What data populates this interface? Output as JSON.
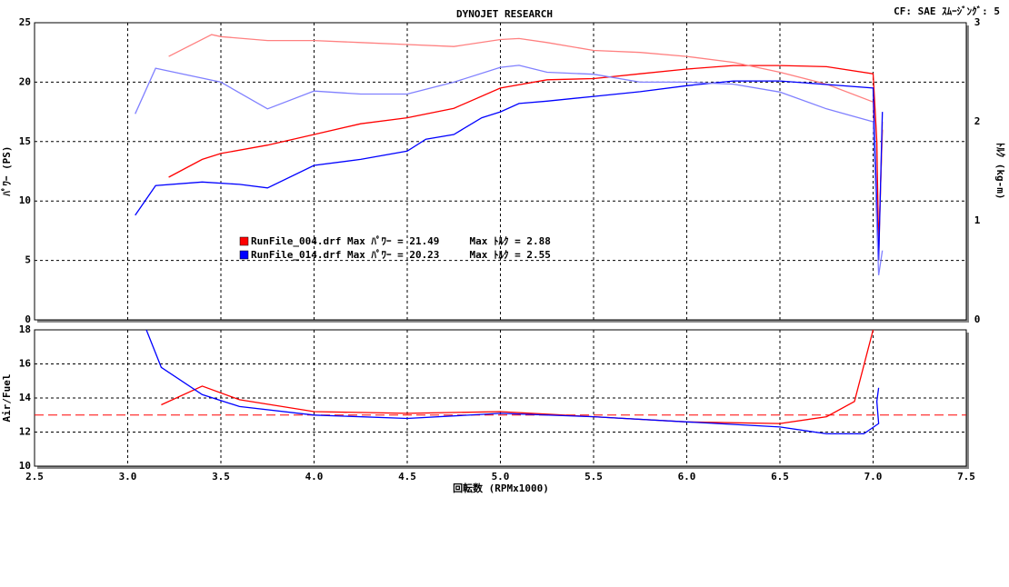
{
  "chart_data": [
    {
      "type": "line",
      "title": "DYNOJET  RESEARCH",
      "annotation": "CF: SAE  ｽﾑｰｼﾞﾝｸﾞ: 5",
      "ylabel": "ﾊﾟﾜｰ (PS)",
      "y2label": "ﾄﾙｸ (kg-m)",
      "xlim": [
        2.5,
        7.5
      ],
      "ylim": [
        0,
        25
      ],
      "yticks": [
        0,
        5,
        10,
        15,
        20,
        25
      ],
      "y2lim": [
        0,
        3
      ],
      "y2ticks": [
        0,
        1,
        2,
        3
      ],
      "grid": true,
      "legend": [
        {
          "label": "RunFile_004.drf Max ﾊﾟﾜｰ = 21.49     Max ﾄﾙｸ = 2.88",
          "color": "#ff0000"
        },
        {
          "label": "RunFile_014.drf Max ﾊﾟﾜｰ = 20.23     Max ﾄﾙｸ = 2.55",
          "color": "#0000ff"
        }
      ],
      "series": [
        {
          "color": "#ff0000",
          "x": [
            3.22,
            3.4,
            3.5,
            3.75,
            4.0,
            4.25,
            4.5,
            4.75,
            5.0,
            5.25,
            5.5,
            5.75,
            6.0,
            6.25,
            6.5,
            6.75,
            7.0,
            7.02,
            7.03,
            7.05
          ],
          "values": [
            12,
            13.5,
            14,
            14.7,
            15.6,
            16.5,
            17,
            17.8,
            19.5,
            20.2,
            20.3,
            20.7,
            21.1,
            21.4,
            21.4,
            21.3,
            20.7,
            15,
            6,
            16
          ]
        },
        {
          "color": "#ff8080",
          "axis": "y2",
          "x": [
            3.22,
            3.45,
            3.5,
            3.75,
            4.0,
            4.25,
            4.5,
            4.75,
            5.0,
            5.1,
            5.25,
            5.5,
            5.75,
            6.0,
            6.25,
            6.5,
            6.75,
            7.0,
            7.03,
            7.05
          ],
          "values": [
            2.66,
            2.88,
            2.86,
            2.82,
            2.82,
            2.8,
            2.78,
            2.76,
            2.83,
            2.84,
            2.8,
            2.72,
            2.7,
            2.66,
            2.6,
            2.5,
            2.38,
            2.2,
            0.6,
            2.0
          ]
        },
        {
          "color": "#0000ff",
          "x": [
            3.04,
            3.15,
            3.4,
            3.6,
            3.75,
            4.0,
            4.25,
            4.5,
            4.6,
            4.75,
            4.9,
            5.0,
            5.1,
            5.25,
            5.5,
            5.75,
            6.0,
            6.25,
            6.5,
            6.75,
            7.0,
            7.03,
            7.05
          ],
          "values": [
            8.8,
            11.3,
            11.6,
            11.4,
            11.1,
            13,
            13.5,
            14.2,
            15.2,
            15.6,
            17,
            17.5,
            18.2,
            18.4,
            18.8,
            19.2,
            19.7,
            20.1,
            20.1,
            19.8,
            19.5,
            5,
            17.5
          ]
        },
        {
          "color": "#8080ff",
          "axis": "y2",
          "x": [
            3.04,
            3.15,
            3.25,
            3.5,
            3.75,
            4.0,
            4.25,
            4.5,
            4.75,
            5.0,
            5.1,
            5.25,
            5.5,
            5.75,
            6.0,
            6.25,
            6.5,
            6.75,
            7.0,
            7.03,
            7.05
          ],
          "values": [
            2.08,
            2.54,
            2.5,
            2.4,
            2.13,
            2.31,
            2.28,
            2.28,
            2.4,
            2.55,
            2.57,
            2.5,
            2.48,
            2.4,
            2.4,
            2.38,
            2.3,
            2.13,
            2.0,
            0.45,
            0.7
          ]
        }
      ]
    },
    {
      "type": "line",
      "xlabel": "回転数 (RPMx1000)",
      "ylabel": "Air/Fuel",
      "xlim": [
        2.5,
        7.5
      ],
      "xticks": [
        2.5,
        {
          "value": 3,
          "label": "3.0"
        },
        3.5,
        {
          "value": 4,
          "label": "4.0"
        },
        4.5,
        {
          "value": 5,
          "label": "5.0"
        },
        5.5,
        {
          "value": 6,
          "label": "6.0"
        },
        6.5,
        {
          "value": 7,
          "label": "7.0"
        },
        7.5
      ],
      "ylim": [
        10,
        18
      ],
      "yticks": [
        10,
        12,
        14,
        16,
        18
      ],
      "grid": true,
      "reference_line": {
        "value": 13,
        "color": "#ff0000"
      },
      "series": [
        {
          "color": "#ff0000",
          "x": [
            3.18,
            3.4,
            3.6,
            4.0,
            4.5,
            5.0,
            5.5,
            6.0,
            6.5,
            6.75,
            6.9,
            7.0
          ],
          "values": [
            13.6,
            14.7,
            13.9,
            13.2,
            13.1,
            13.2,
            12.9,
            12.6,
            12.5,
            12.9,
            13.8,
            18
          ]
        },
        {
          "color": "#0000ff",
          "x": [
            3.1,
            3.18,
            3.4,
            3.6,
            4.0,
            4.5,
            5.0,
            5.5,
            6.0,
            6.5,
            6.75,
            6.95,
            7.03,
            7.02,
            7.03
          ],
          "values": [
            18,
            15.8,
            14.2,
            13.5,
            13.0,
            12.8,
            13.1,
            12.9,
            12.6,
            12.3,
            11.9,
            11.9,
            12.5,
            13.8,
            14.6
          ]
        }
      ]
    }
  ]
}
